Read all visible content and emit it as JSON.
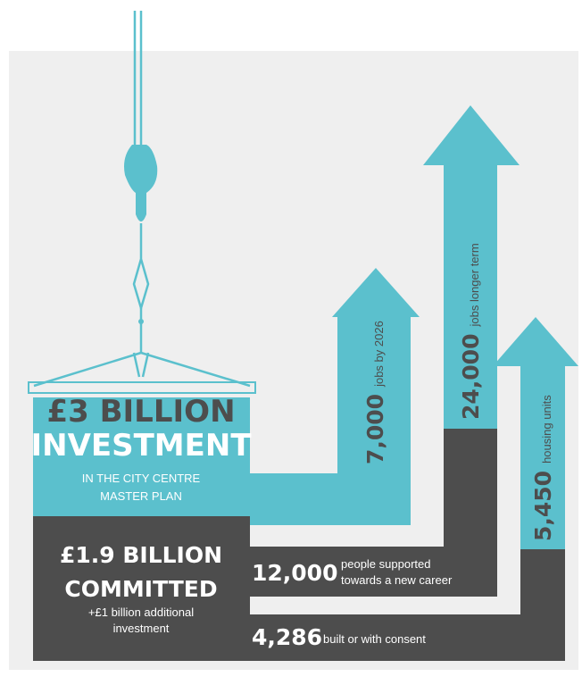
{
  "investment": {
    "headline": [
      "£3 BILLION",
      "INVESTMENT"
    ],
    "subtitle": [
      "IN THE CITY CENTRE",
      "MASTER PLAN"
    ]
  },
  "committed": {
    "headline": [
      "£1.9 BILLION",
      "COMMITTED"
    ],
    "note": [
      "+£1 billion additional",
      "investment"
    ]
  },
  "arrows": [
    {
      "value": "7,000",
      "label": "jobs by 2026"
    },
    {
      "value": "24,000",
      "label": "jobs longer term"
    },
    {
      "value": "5,450",
      "label": "housing units"
    }
  ],
  "stats": [
    {
      "value": "12,000",
      "label": [
        "people supported",
        "towards a new career"
      ]
    },
    {
      "value": "4,286",
      "label": [
        "built or with consent"
      ]
    }
  ]
}
